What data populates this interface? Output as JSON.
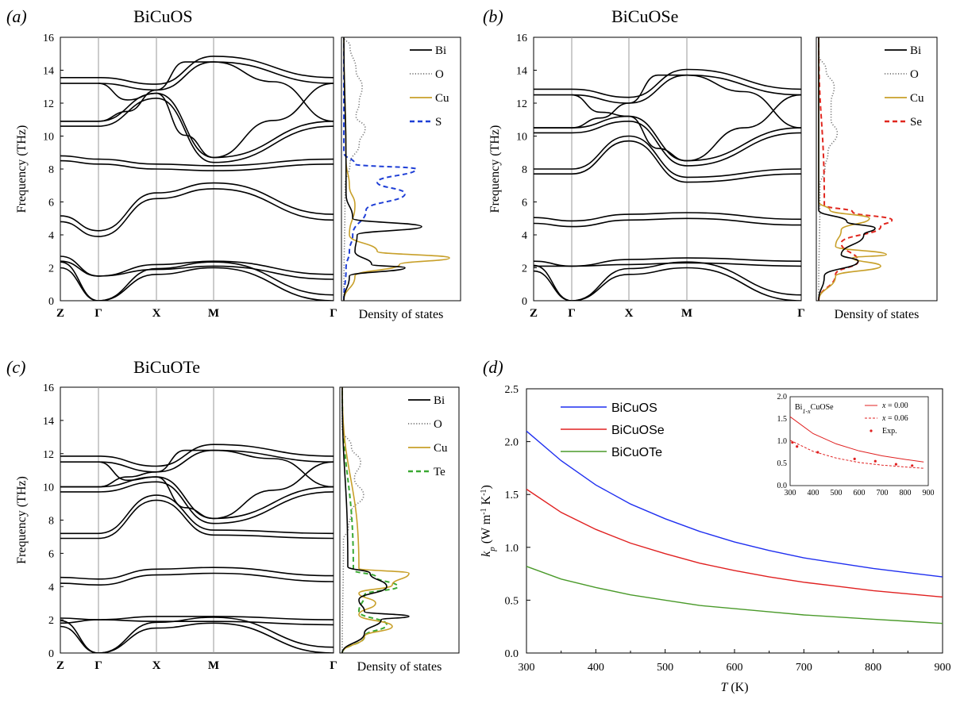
{
  "panels": [
    {
      "id": "a",
      "label": "(a)",
      "title": "BiCuOS",
      "ylabel": "Frequency (THz)",
      "yticks": [
        "0",
        "2",
        "4",
        "6",
        "8",
        "10",
        "12",
        "14",
        "16"
      ],
      "kpoints": [
        "Z",
        "Γ",
        "X",
        "M",
        "Γ"
      ],
      "dos_xlabel": "Density of states",
      "legend": [
        {
          "name": "Bi",
          "color": "#000000",
          "dash": "solid"
        },
        {
          "name": "O",
          "color": "#777777",
          "dash": "dotted"
        },
        {
          "name": "Cu",
          "color": "#c8a02a",
          "dash": "solid"
        },
        {
          "name": "S",
          "color": "#1f3fd6",
          "dash": "dashed"
        }
      ]
    },
    {
      "id": "b",
      "label": "(b)",
      "title": "BiCuOSe",
      "ylabel": "Frequency (THz)",
      "yticks": [
        "0",
        "2",
        "4",
        "6",
        "8",
        "10",
        "12",
        "14",
        "16"
      ],
      "kpoints": [
        "Z",
        "Γ",
        "X",
        "M",
        "Γ"
      ],
      "dos_xlabel": "Density of states",
      "legend": [
        {
          "name": "Bi",
          "color": "#000000",
          "dash": "solid"
        },
        {
          "name": "O",
          "color": "#777777",
          "dash": "dotted"
        },
        {
          "name": "Cu",
          "color": "#c8a02a",
          "dash": "solid"
        },
        {
          "name": "Se",
          "color": "#e0261e",
          "dash": "dashed"
        }
      ]
    },
    {
      "id": "c",
      "label": "(c)",
      "title": "BiCuOTe",
      "ylabel": "Frequency (THz)",
      "yticks": [
        "0",
        "2",
        "4",
        "6",
        "8",
        "10",
        "12",
        "14",
        "16"
      ],
      "kpoints": [
        "Z",
        "Γ",
        "X",
        "M",
        "Γ"
      ],
      "dos_xlabel": "Density of states",
      "legend": [
        {
          "name": "Bi",
          "color": "#000000",
          "dash": "solid"
        },
        {
          "name": "O",
          "color": "#777777",
          "dash": "dotted"
        },
        {
          "name": "Cu",
          "color": "#c8a02a",
          "dash": "solid"
        },
        {
          "name": "Te",
          "color": "#3aa832",
          "dash": "dashed"
        }
      ]
    }
  ],
  "panel_d": {
    "label": "(d)",
    "ylabel_sym": "k",
    "ylabel_sub": "p",
    "ylabel_unit_a": " (W m",
    "ylabel_sup1": "-1",
    "ylabel_unit_b": " K",
    "ylabel_sup2": "-1",
    "ylabel_close": ")",
    "xlabel_sym": "T",
    "xlabel_unit": " (K)",
    "inset_title_a": "Bi",
    "inset_title_sub": "1-x",
    "inset_title_b": "CuOSe",
    "inset_legend": [
      {
        "label_a": "x",
        "label_b": " = 0.00",
        "style": "solid"
      },
      {
        "label_a": "x",
        "label_b": " = 0.06",
        "style": "dashed"
      },
      {
        "label_a": "",
        "label_b": "Exp.",
        "style": "marker"
      }
    ]
  },
  "chart_data": [
    {
      "type": "line",
      "title": "BiCuOS",
      "ylabel": "Frequency (THz)",
      "ylim": [
        0,
        16
      ],
      "x_ticks": [
        "Z",
        "Γ",
        "X",
        "M",
        "Γ"
      ],
      "series": [
        {
          "name": "band 1",
          "values": [
            2.0,
            0.0,
            1.6,
            2.0,
            0.0
          ]
        },
        {
          "name": "band 2",
          "values": [
            2.7,
            1.5,
            2.2,
            2.4,
            1.6
          ]
        },
        {
          "name": "band 3",
          "values": [
            4.8,
            3.9,
            6.2,
            6.8,
            4.9
          ]
        },
        {
          "name": "band 4",
          "values": [
            8.8,
            8.6,
            8.3,
            8.2,
            8.6
          ]
        },
        {
          "name": "band 5",
          "values": [
            13.2,
            13.2,
            12.8,
            14.5,
            13.2
          ]
        },
        {
          "name": "band 6",
          "values": [
            10.9,
            10.9,
            12.6,
            8.7,
            10.9
          ]
        }
      ]
    },
    {
      "type": "line",
      "title": "BiCuOSe",
      "ylabel": "Frequency (THz)",
      "ylim": [
        0,
        16
      ],
      "x_ticks": [
        "Z",
        "Γ",
        "X",
        "M",
        "Γ"
      ],
      "series": [
        {
          "name": "band 1",
          "values": [
            1.8,
            0.0,
            1.6,
            2.0,
            0.0
          ]
        },
        {
          "name": "band 2",
          "values": [
            2.4,
            2.1,
            2.5,
            2.6,
            2.4
          ]
        },
        {
          "name": "band 3",
          "values": [
            4.7,
            4.5,
            4.9,
            5.0,
            4.6
          ]
        },
        {
          "name": "band 4",
          "values": [
            8.0,
            8.0,
            10.0,
            7.5,
            8.0
          ]
        },
        {
          "name": "band 5",
          "values": [
            12.5,
            12.5,
            12.0,
            13.7,
            12.5
          ]
        },
        {
          "name": "band 6",
          "values": [
            10.5,
            10.5,
            11.2,
            8.5,
            10.5
          ]
        }
      ]
    },
    {
      "type": "line",
      "title": "BiCuOTe",
      "ylabel": "Frequency (THz)",
      "ylim": [
        0,
        16
      ],
      "x_ticks": [
        "Z",
        "Γ",
        "X",
        "M",
        "Γ"
      ],
      "series": [
        {
          "name": "band 1",
          "values": [
            1.6,
            0.0,
            1.5,
            1.8,
            0.0
          ]
        },
        {
          "name": "band 2",
          "values": [
            2.1,
            2.0,
            2.2,
            2.2,
            2.0
          ]
        },
        {
          "name": "band 3",
          "values": [
            4.2,
            4.1,
            4.7,
            4.8,
            4.3
          ]
        },
        {
          "name": "band 4",
          "values": [
            7.2,
            7.2,
            9.5,
            7.4,
            7.2
          ]
        },
        {
          "name": "band 5",
          "values": [
            11.5,
            11.5,
            10.9,
            12.2,
            11.5
          ]
        },
        {
          "name": "band 6",
          "values": [
            10.0,
            10.0,
            10.6,
            8.1,
            10.0
          ]
        }
      ]
    },
    {
      "type": "line",
      "xlabel": "T (K)",
      "ylabel": "kp (W m-1 K-1)",
      "xlim": [
        300,
        900
      ],
      "ylim": [
        0.0,
        2.5
      ],
      "x_ticks": [
        300,
        400,
        500,
        600,
        700,
        800,
        900
      ],
      "y_ticks": [
        "0.0",
        "0.5",
        "1.0",
        "1.5",
        "2.0",
        "2.5"
      ],
      "x": [
        300,
        350,
        400,
        450,
        500,
        550,
        600,
        650,
        700,
        750,
        800,
        850,
        900
      ],
      "series": [
        {
          "name": "BiCuOS",
          "color": "#1f2ff0",
          "values": [
            2.1,
            1.82,
            1.59,
            1.41,
            1.27,
            1.15,
            1.05,
            0.97,
            0.9,
            0.85,
            0.8,
            0.76,
            0.72
          ]
        },
        {
          "name": "BiCuOSe",
          "color": "#e02020",
          "values": [
            1.55,
            1.33,
            1.17,
            1.04,
            0.94,
            0.85,
            0.78,
            0.72,
            0.67,
            0.63,
            0.59,
            0.56,
            0.53
          ]
        },
        {
          "name": "BiCuOTe",
          "color": "#4a9a2a",
          "values": [
            0.82,
            0.7,
            0.62,
            0.55,
            0.5,
            0.45,
            0.42,
            0.39,
            0.36,
            0.34,
            0.32,
            0.3,
            0.28
          ]
        }
      ]
    },
    {
      "type": "line",
      "title": "Bi1-xCuOSe",
      "xlim": [
        300,
        900
      ],
      "ylim": [
        0.0,
        2.0
      ],
      "x_ticks": [
        300,
        400,
        500,
        600,
        700,
        800,
        900
      ],
      "y_ticks": [
        "0.0",
        "0.5",
        "1.0",
        "1.5",
        "2.0"
      ],
      "x": [
        300,
        400,
        500,
        600,
        700,
        800,
        880
      ],
      "series": [
        {
          "name": "x = 0.00",
          "values": [
            1.55,
            1.17,
            0.94,
            0.78,
            0.67,
            0.59,
            0.53
          ]
        },
        {
          "name": "x = 0.06",
          "values": [
            1.02,
            0.77,
            0.62,
            0.52,
            0.46,
            0.42,
            0.39
          ]
        },
        {
          "name": "Exp.",
          "x": [
            310,
            330,
            420,
            580,
            670,
            760,
            830
          ],
          "values": [
            0.97,
            0.88,
            0.75,
            0.6,
            0.55,
            0.48,
            0.45
          ]
        }
      ]
    }
  ]
}
